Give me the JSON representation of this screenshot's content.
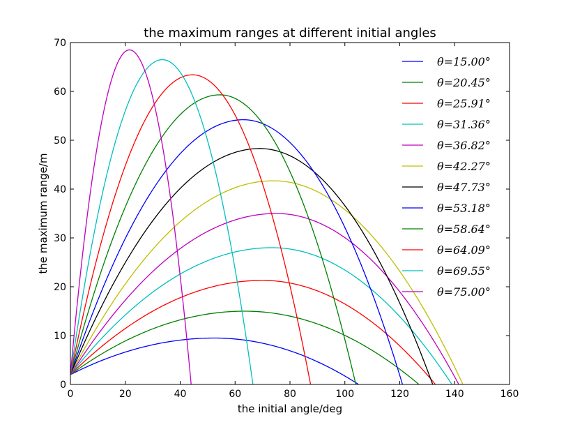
{
  "chart_data": {
    "type": "line",
    "title": "the maximum ranges at different initial angles",
    "xlabel": "the initial angle/deg",
    "ylabel": "the maximum range/m",
    "xlim": [
      0,
      160
    ],
    "ylim": [
      0,
      70
    ],
    "xticks": [
      "0",
      "20",
      "40",
      "60",
      "80",
      "100",
      "120",
      "140",
      "160"
    ],
    "yticks": [
      "0",
      "10",
      "20",
      "30",
      "40",
      "50",
      "60",
      "70"
    ],
    "grid": false,
    "legend_position": "top-right",
    "series": [
      {
        "name": "θ=15.00°",
        "color": "#0000ff",
        "peak_x": 52.5,
        "peak_y": 9.5,
        "x0": 105.0,
        "y_start": 2.0
      },
      {
        "name": "θ=20.45°",
        "color": "#008000",
        "peak_x": 63.5,
        "peak_y": 15.0,
        "x0": 127.0,
        "y_start": 2.0
      },
      {
        "name": "θ=25.91°",
        "color": "#ff0000",
        "peak_x": 70.0,
        "peak_y": 21.3,
        "x0": 133.0,
        "y_start": 2.0
      },
      {
        "name": "θ=31.36°",
        "color": "#00bfbf",
        "peak_x": 73.5,
        "peak_y": 28.0,
        "x0": 139.0,
        "y_start": 2.0
      },
      {
        "name": "θ=36.82°",
        "color": "#bf00bf",
        "peak_x": 75.0,
        "peak_y": 35.0,
        "x0": 141.5,
        "y_start": 2.0
      },
      {
        "name": "θ=42.27°",
        "color": "#bfbf00",
        "peak_x": 74.0,
        "peak_y": 41.7,
        "x0": 143.0,
        "y_start": 2.0
      },
      {
        "name": "θ=47.73°",
        "color": "#000000",
        "peak_x": 69.0,
        "peak_y": 48.3,
        "x0": 132.0,
        "y_start": 2.0
      },
      {
        "name": "θ=53.18°",
        "color": "#0000ff",
        "peak_x": 63.0,
        "peak_y": 54.2,
        "x0": 121.0,
        "y_start": 2.0
      },
      {
        "name": "θ=58.64°",
        "color": "#008000",
        "peak_x": 54.5,
        "peak_y": 59.3,
        "x0": 104.0,
        "y_start": 2.0
      },
      {
        "name": "θ=64.09°",
        "color": "#ff0000",
        "peak_x": 44.5,
        "peak_y": 63.4,
        "x0": 87.5,
        "y_start": 2.0
      },
      {
        "name": "θ=69.55°",
        "color": "#00bfbf",
        "peak_x": 33.5,
        "peak_y": 66.5,
        "x0": 66.5,
        "y_start": 2.0
      },
      {
        "name": "θ=75.00°",
        "color": "#bf00bf",
        "peak_x": 21.5,
        "peak_y": 68.5,
        "x0": 44.0,
        "y_start": 2.0
      }
    ]
  }
}
